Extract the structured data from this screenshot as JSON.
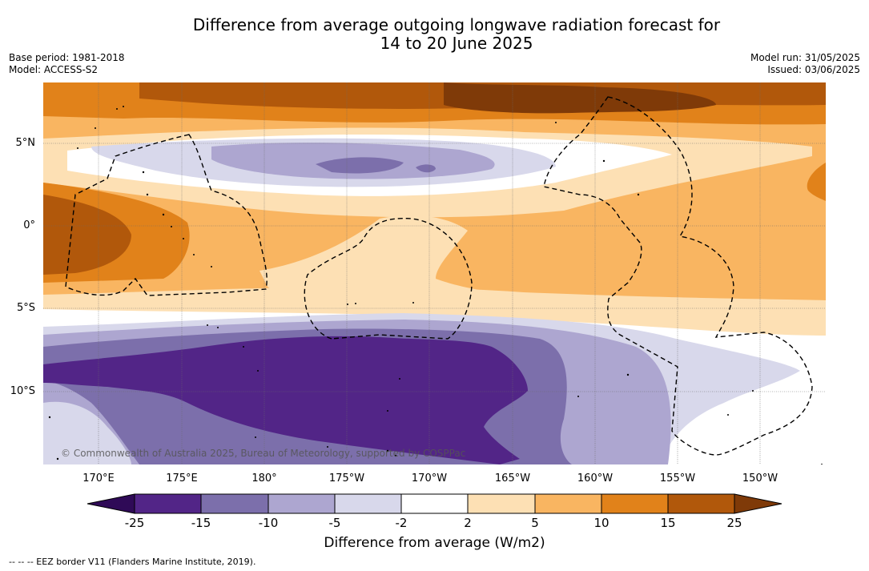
{
  "header": {
    "title_line1": "Difference from average outgoing longwave radiation forecast for",
    "title_line2": "14 to 20 June 2025",
    "base_period": "Base period: 1981-2018",
    "model": "Model: ACCESS-S2",
    "model_run": "Model run: 31/05/2025",
    "issued": "Issued: 03/06/2025"
  },
  "map": {
    "copyright": "© Commonwealth of Australia 2025, Bureau of Meteorology, supported by COSPPac",
    "lat_labels": [
      "5°N",
      "0°",
      "5°S",
      "10°S"
    ],
    "lon_labels": [
      "170°E",
      "175°E",
      "180°",
      "175°W",
      "170°W",
      "165°W",
      "160°W",
      "155°W",
      "150°W"
    ]
  },
  "colorbar": {
    "title": "Difference from average (W/m2)",
    "ticks": [
      "-25",
      "-15",
      "-10",
      "-5",
      "-2",
      "2",
      "5",
      "10",
      "15",
      "25"
    ],
    "colors": {
      "lt_-25": "#2f0a57",
      "-25_-15": "#522587",
      "-15_-10": "#7c6fab",
      "-10_-5": "#ada6d0",
      "-5_-2": "#d8d8eb",
      "-2_2": "#ffffff",
      "2_5": "#fde0b4",
      "5_10": "#f9b561",
      "10_15": "#e1821a",
      "15_25": "#b1580b",
      "gt_25": "#7f3a08"
    }
  },
  "footer": {
    "legend": "--  --  -- EEZ border V11 (Flanders Marine Institute, 2019)."
  }
}
